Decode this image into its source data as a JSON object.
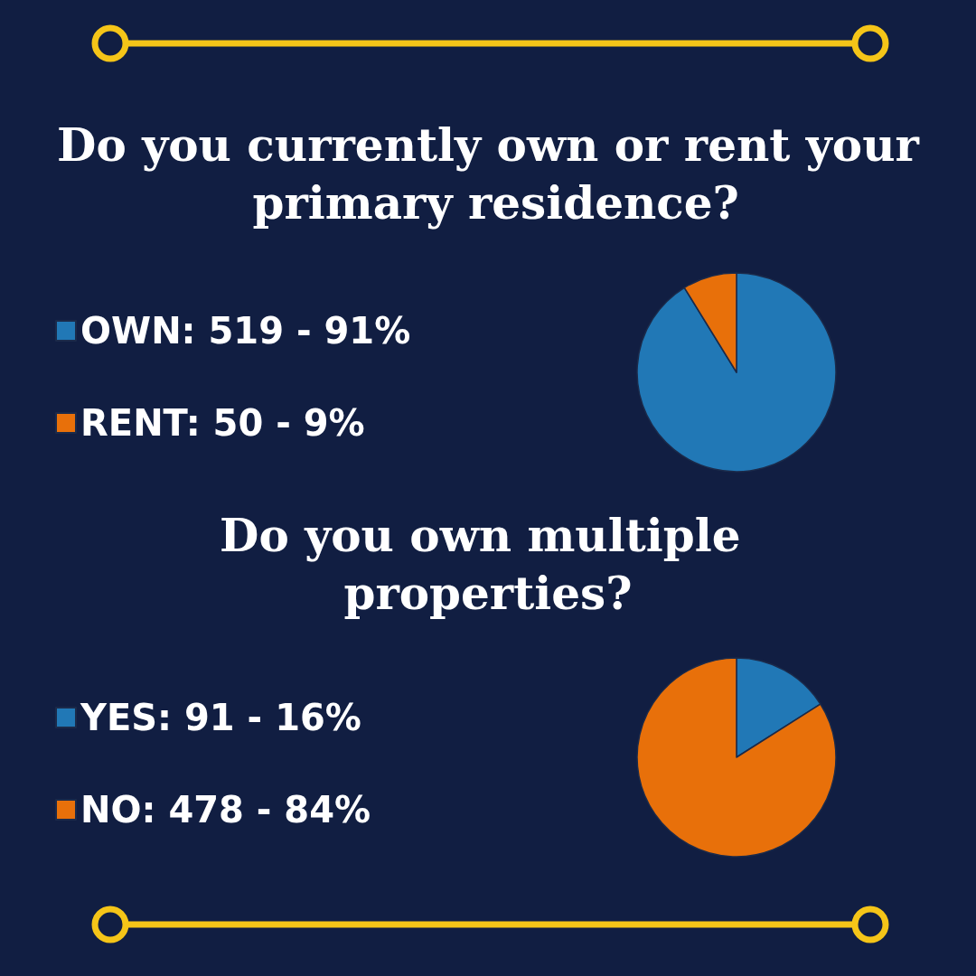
{
  "chart_data": [
    {
      "type": "pie",
      "title": "Do you currently own or rent your primary residence?",
      "categories": [
        "OWN",
        "RENT"
      ],
      "values": [
        519,
        50
      ],
      "value_labels": [
        "519 - 91%",
        "50 - 9%"
      ],
      "colors": [
        "#2178b6",
        "#e8700a"
      ],
      "legend": "left"
    },
    {
      "type": "pie",
      "title": "Do you own multiple properties?",
      "categories": [
        "YES",
        "NO"
      ],
      "values": [
        91,
        478
      ],
      "value_labels": [
        "91 - 16%",
        "478 - 84%"
      ],
      "colors": [
        "#2178b6",
        "#e8700a"
      ],
      "legend": "left"
    }
  ]
}
